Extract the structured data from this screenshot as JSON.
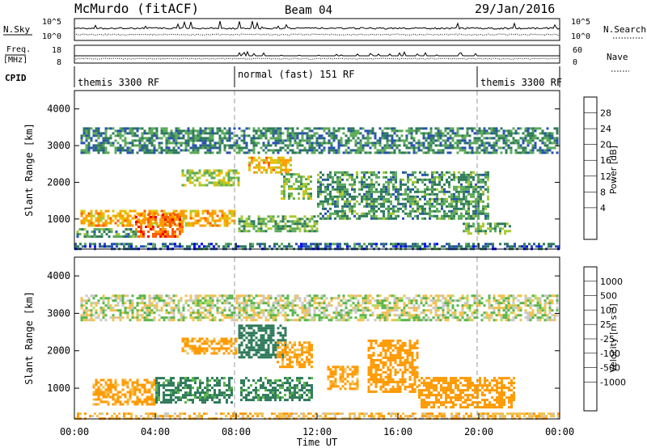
{
  "header": {
    "station": "McMurdo (fitACF)",
    "beam": "Beam 04",
    "date": "29/Jan/2016"
  },
  "aux_panels": {
    "nsky_label": "N.Sky",
    "nsky_ticks": [
      "10^5",
      "10^0"
    ],
    "nsearch_label": "N.Search",
    "nsearch_ticks": [
      "10^5",
      "10^0"
    ],
    "freq_label": "Freq.",
    "freq_unit": "[MHz]",
    "freq_ticks": [
      "18",
      "8"
    ],
    "nave_label": "Nave",
    "nave_ticks": [
      "60",
      "0"
    ],
    "cpid_label": "CPID",
    "cpid_segments": [
      {
        "name": "themis 3300 RF",
        "start_h": 0.0,
        "end_h": 8.0
      },
      {
        "name": "normal (fast) 151 RF",
        "start_h": 8.0,
        "end_h": 20.0
      },
      {
        "name": "themis 3300 RF",
        "start_h": 20.0,
        "end_h": 24.0
      }
    ]
  },
  "colorbars": {
    "power": {
      "label": "Power [dB]",
      "ticks": [
        "28",
        "24",
        "20",
        "16",
        "12",
        "8",
        "4"
      ],
      "colors": [
        "#ee0000",
        "#ff5a00",
        "#ff9a00",
        "#e8c000",
        "#a8c832",
        "#5caa5a",
        "#2e7a5a",
        "#284fb4",
        "#0000ff"
      ]
    },
    "velocity": {
      "label": "Velocity [m s⁻¹]",
      "ticks": [
        "1000",
        "500",
        "100",
        "25",
        "-25",
        "-100",
        "-500",
        "-1000"
      ],
      "colors": [
        "#2030a8",
        "#3a62c8",
        "#2e7a5a",
        "#59b54a",
        "#a8dd60",
        "#c8c8c8",
        "#f2c050",
        "#ff9a00",
        "#ff5a00",
        "#e01818"
      ]
    }
  },
  "chart_data": [
    {
      "type": "heatmap",
      "panel": "power",
      "ylabel": "Slant Range [km]",
      "xlabel": "Time UT",
      "xlim_hours": [
        0,
        24
      ],
      "ylim_km": [
        180,
        4500
      ],
      "y_ticks": [
        "4000",
        "3000",
        "2000",
        "1000"
      ],
      "x_ticks": [
        "00:00",
        "04:00",
        "08:00",
        "12:00",
        "16:00",
        "20:00",
        "00:00"
      ],
      "regions": [
        {
          "t0": 0.3,
          "t1": 7.9,
          "r0": 800,
          "r1": 1250,
          "value_db": 22
        },
        {
          "t0": 3.0,
          "t1": 5.3,
          "r0": 550,
          "r1": 1150,
          "value_db": 27
        },
        {
          "t0": 0.1,
          "t1": 3.0,
          "r0": 550,
          "r1": 750,
          "value_db": 10
        },
        {
          "t0": 8.6,
          "t1": 10.7,
          "r0": 2250,
          "r1": 2700,
          "value_db": 22
        },
        {
          "t0": 10.2,
          "t1": 11.7,
          "r0": 1550,
          "r1": 2250,
          "value_db": 14
        },
        {
          "t0": 5.3,
          "t1": 8.1,
          "r0": 1900,
          "r1": 2350,
          "value_db": 15
        },
        {
          "t0": 0.3,
          "t1": 23.9,
          "r0": 2800,
          "r1": 3500,
          "value_db": 9
        },
        {
          "t0": 12.0,
          "t1": 20.5,
          "r0": 1000,
          "r1": 2300,
          "value_db": 10
        },
        {
          "t0": 19.2,
          "t1": 21.6,
          "r0": 600,
          "r1": 900,
          "value_db": 12
        },
        {
          "t0": 8.1,
          "t1": 12.0,
          "r0": 700,
          "r1": 1100,
          "value_db": 12
        },
        {
          "t0": 0.0,
          "t1": 24.0,
          "r0": 180,
          "r1": 350,
          "value_db": 6
        }
      ]
    },
    {
      "type": "heatmap",
      "panel": "velocity",
      "ylabel": "Slant Range [km]",
      "xlabel": "Time UT",
      "xlim_hours": [
        0,
        24
      ],
      "ylim_km": [
        180,
        4500
      ],
      "y_ticks": [
        "4000",
        "3000",
        "2000",
        "1000"
      ],
      "x_ticks": [
        "00:00",
        "04:00",
        "08:00",
        "12:00",
        "16:00",
        "20:00",
        "00:00"
      ],
      "regions": [
        {
          "t0": 0.9,
          "t1": 4.0,
          "r0": 600,
          "r1": 1250,
          "value_ms": -150
        },
        {
          "t0": 4.0,
          "t1": 7.8,
          "r0": 600,
          "r1": 1300,
          "value_ms": 150
        },
        {
          "t0": 8.1,
          "t1": 10.5,
          "r0": 1800,
          "r1": 2700,
          "value_ms": 200
        },
        {
          "t0": 10.0,
          "t1": 11.8,
          "r0": 1600,
          "r1": 2250,
          "value_ms": -150
        },
        {
          "t0": 5.3,
          "t1": 8.0,
          "r0": 1900,
          "r1": 2350,
          "value_ms": -150
        },
        {
          "t0": 8.2,
          "t1": 11.8,
          "r0": 700,
          "r1": 1300,
          "value_ms": 150
        },
        {
          "t0": 14.5,
          "t1": 17.0,
          "r0": 900,
          "r1": 2300,
          "value_ms": -300
        },
        {
          "t0": 17.0,
          "t1": 21.8,
          "r0": 500,
          "r1": 1300,
          "value_ms": -350
        },
        {
          "t0": 12.5,
          "t1": 14.0,
          "r0": 1000,
          "r1": 1600,
          "value_ms": -150
        },
        {
          "t0": 0.3,
          "t1": 23.9,
          "r0": 2850,
          "r1": 3500,
          "value_ms": 0
        },
        {
          "t0": 0.0,
          "t1": 24.0,
          "r0": 180,
          "r1": 350,
          "value_ms": -80
        }
      ]
    }
  ]
}
